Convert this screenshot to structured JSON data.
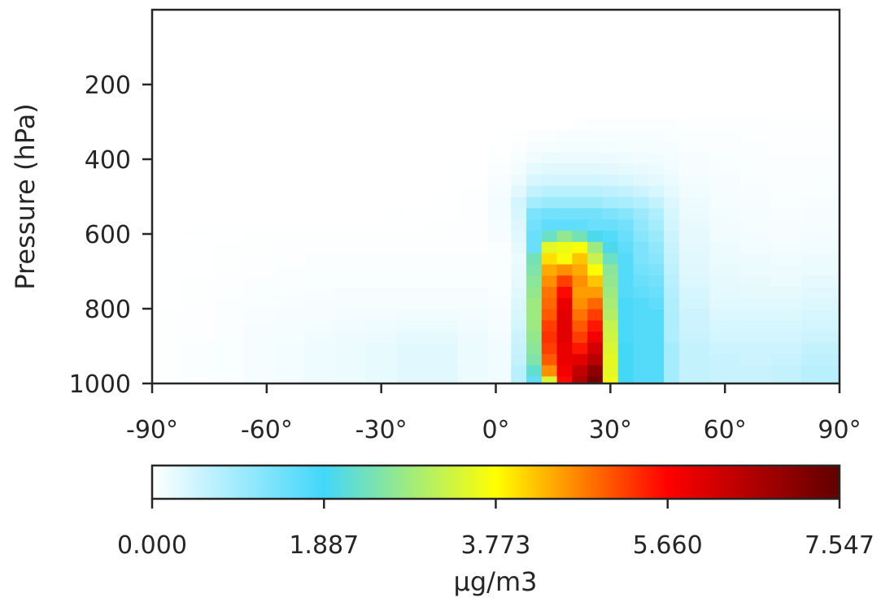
{
  "chart_data": {
    "type": "heatmap",
    "title": "",
    "xlabel": "",
    "ylabel": "Pressure (hPa)",
    "second_ylabel_partial": "Pressure (hPa)",
    "xlim": [
      -90,
      90
    ],
    "ylim": [
      1000,
      0
    ],
    "x_ticks": [
      -90,
      -60,
      -30,
      0,
      30,
      60,
      90
    ],
    "x_tick_labels": [
      "-90°",
      "-60°",
      "-30°",
      "0°",
      "30°",
      "60°",
      "90°"
    ],
    "y_ticks": [
      200,
      400,
      600,
      800,
      1000
    ],
    "y_tick_labels": [
      "200",
      "400",
      "600",
      "800",
      "1000"
    ],
    "grid": false,
    "colormap": "jet-like (white → cyan → yellow → red → dark red)",
    "colorbar": {
      "label": "μg/m3",
      "min": 0.0,
      "max": 7.547,
      "ticks": [
        0.0,
        1.887,
        3.773,
        5.66,
        7.547
      ],
      "tick_labels": [
        "0.000",
        "1.887",
        "3.773",
        "5.660",
        "7.547"
      ],
      "colors": [
        "#ffffff",
        "#42d7fa",
        "#ffff00",
        "#ff0000",
        "#600000"
      ],
      "stops": [
        0.0,
        0.25,
        0.5,
        0.75,
        1.0
      ]
    },
    "lat_edges": [
      -90,
      -82,
      -74,
      -66,
      -58,
      -50,
      -42,
      -34,
      -26,
      -18,
      -10,
      -2,
      4,
      8,
      12,
      16,
      20,
      24,
      28,
      32,
      36,
      40,
      44,
      48,
      56,
      64,
      72,
      80,
      90
    ],
    "pressure_edges": [
      1010,
      980,
      950,
      920,
      890,
      860,
      830,
      800,
      770,
      740,
      710,
      680,
      650,
      620,
      590,
      560,
      530,
      500,
      470,
      440,
      410,
      380,
      350,
      320,
      290
    ],
    "values": [
      [
        0.02,
        0.04,
        0.06,
        0.1,
        0.12,
        0.16,
        0.2,
        0.24,
        0.3,
        0.3,
        0.2,
        0.15,
        0.7,
        1.6,
        3.4,
        5.6,
        6.6,
        7.3,
        3.6,
        1.9,
        1.7,
        1.7,
        0.9,
        0.6,
        0.55,
        0.55,
        0.6,
        0.7
      ],
      [
        0.02,
        0.04,
        0.06,
        0.1,
        0.12,
        0.16,
        0.2,
        0.24,
        0.3,
        0.3,
        0.2,
        0.15,
        0.7,
        2.2,
        4.6,
        5.8,
        6.4,
        7.0,
        3.5,
        1.9,
        1.7,
        1.7,
        0.9,
        0.6,
        0.55,
        0.55,
        0.6,
        0.7
      ],
      [
        0.02,
        0.04,
        0.06,
        0.1,
        0.12,
        0.16,
        0.2,
        0.24,
        0.3,
        0.3,
        0.2,
        0.15,
        0.6,
        2.5,
        5.0,
        5.9,
        6.0,
        6.5,
        3.5,
        1.9,
        1.7,
        1.7,
        0.9,
        0.6,
        0.55,
        0.5,
        0.55,
        0.65
      ],
      [
        0.02,
        0.04,
        0.06,
        0.1,
        0.12,
        0.16,
        0.2,
        0.24,
        0.3,
        0.3,
        0.2,
        0.15,
        0.55,
        2.6,
        5.2,
        5.9,
        5.5,
        6.2,
        3.4,
        1.9,
        1.7,
        1.7,
        0.9,
        0.6,
        0.5,
        0.5,
        0.5,
        0.6
      ],
      [
        0.02,
        0.03,
        0.05,
        0.09,
        0.11,
        0.15,
        0.18,
        0.2,
        0.26,
        0.25,
        0.18,
        0.12,
        0.5,
        2.7,
        5.3,
        6.0,
        5.2,
        5.8,
        3.3,
        1.8,
        1.7,
        1.7,
        0.8,
        0.55,
        0.45,
        0.45,
        0.45,
        0.5
      ],
      [
        0.02,
        0.03,
        0.05,
        0.08,
        0.1,
        0.12,
        0.14,
        0.16,
        0.2,
        0.2,
        0.15,
        0.1,
        0.45,
        2.8,
        5.2,
        6.0,
        5.0,
        5.5,
        3.2,
        1.8,
        1.7,
        1.7,
        0.8,
        0.5,
        0.4,
        0.4,
        0.4,
        0.45
      ],
      [
        0.02,
        0.03,
        0.04,
        0.07,
        0.08,
        0.1,
        0.12,
        0.12,
        0.14,
        0.14,
        0.12,
        0.08,
        0.4,
        2.8,
        5.0,
        6.0,
        4.8,
        5.2,
        3.0,
        1.8,
        1.7,
        1.7,
        0.8,
        0.5,
        0.35,
        0.35,
        0.35,
        0.4
      ],
      [
        0.01,
        0.02,
        0.04,
        0.06,
        0.07,
        0.08,
        0.1,
        0.1,
        0.1,
        0.1,
        0.1,
        0.07,
        0.35,
        2.8,
        4.9,
        5.9,
        4.6,
        4.9,
        2.9,
        1.8,
        1.7,
        1.6,
        0.8,
        0.45,
        0.3,
        0.3,
        0.3,
        0.35
      ],
      [
        0.01,
        0.02,
        0.03,
        0.05,
        0.06,
        0.07,
        0.08,
        0.08,
        0.08,
        0.08,
        0.08,
        0.06,
        0.3,
        2.7,
        4.8,
        5.6,
        4.5,
        4.5,
        2.8,
        1.7,
        1.6,
        1.5,
        0.75,
        0.4,
        0.28,
        0.25,
        0.25,
        0.3
      ],
      [
        0.01,
        0.02,
        0.03,
        0.04,
        0.05,
        0.06,
        0.06,
        0.06,
        0.06,
        0.06,
        0.06,
        0.05,
        0.25,
        2.6,
        4.6,
        5.2,
        4.6,
        4.2,
        2.7,
        1.7,
        1.5,
        1.4,
        0.7,
        0.35,
        0.25,
        0.22,
        0.2,
        0.25
      ],
      [
        0.01,
        0.01,
        0.02,
        0.03,
        0.04,
        0.05,
        0.05,
        0.05,
        0.05,
        0.05,
        0.05,
        0.04,
        0.22,
        2.5,
        4.4,
        4.6,
        4.4,
        3.8,
        2.6,
        1.7,
        1.4,
        1.3,
        0.65,
        0.32,
        0.22,
        0.2,
        0.18,
        0.2
      ],
      [
        0.01,
        0.01,
        0.02,
        0.03,
        0.03,
        0.04,
        0.04,
        0.04,
        0.04,
        0.04,
        0.04,
        0.04,
        0.2,
        2.4,
        4.0,
        3.7,
        4.2,
        3.2,
        2.3,
        1.7,
        1.3,
        1.2,
        0.6,
        0.3,
        0.2,
        0.18,
        0.15,
        0.18
      ],
      [
        0.01,
        0.01,
        0.02,
        0.02,
        0.03,
        0.03,
        0.03,
        0.03,
        0.03,
        0.03,
        0.03,
        0.05,
        0.25,
        1.5,
        3.5,
        3.6,
        3.7,
        2.8,
        2.0,
        1.6,
        1.3,
        1.1,
        0.55,
        0.28,
        0.18,
        0.15,
        0.12,
        0.15
      ],
      [
        0.0,
        0.01,
        0.01,
        0.02,
        0.02,
        0.02,
        0.02,
        0.02,
        0.02,
        0.02,
        0.03,
        0.08,
        0.3,
        1.5,
        2.3,
        2.7,
        2.4,
        2.0,
        1.7,
        1.5,
        1.2,
        1.0,
        0.5,
        0.25,
        0.15,
        0.12,
        0.1,
        0.12
      ],
      [
        0.0,
        0.0,
        0.01,
        0.01,
        0.01,
        0.01,
        0.01,
        0.01,
        0.01,
        0.02,
        0.03,
        0.1,
        0.35,
        1.4,
        1.6,
        1.6,
        1.6,
        1.5,
        1.5,
        1.4,
        1.1,
        0.9,
        0.45,
        0.22,
        0.13,
        0.1,
        0.08,
        0.1
      ],
      [
        0.0,
        0.0,
        0.0,
        0.0,
        0.0,
        0.0,
        0.0,
        0.0,
        0.01,
        0.01,
        0.03,
        0.12,
        0.4,
        1.3,
        1.4,
        1.4,
        1.4,
        1.4,
        1.3,
        1.2,
        1.0,
        0.8,
        0.4,
        0.2,
        0.12,
        0.09,
        0.07,
        0.08
      ],
      [
        0.0,
        0.0,
        0.0,
        0.0,
        0.0,
        0.0,
        0.0,
        0.0,
        0.0,
        0.01,
        0.03,
        0.12,
        0.45,
        0.9,
        1.0,
        1.0,
        1.0,
        1.0,
        0.9,
        0.85,
        0.75,
        0.6,
        0.35,
        0.18,
        0.1,
        0.08,
        0.06,
        0.07
      ],
      [
        0.0,
        0.0,
        0.0,
        0.0,
        0.0,
        0.0,
        0.0,
        0.0,
        0.0,
        0.0,
        0.02,
        0.1,
        0.3,
        0.6,
        0.7,
        0.7,
        0.7,
        0.7,
        0.65,
        0.6,
        0.5,
        0.4,
        0.25,
        0.15,
        0.09,
        0.07,
        0.05,
        0.06
      ],
      [
        0.0,
        0.0,
        0.0,
        0.0,
        0.0,
        0.0,
        0.0,
        0.0,
        0.0,
        0.0,
        0.01,
        0.07,
        0.2,
        0.4,
        0.45,
        0.45,
        0.45,
        0.45,
        0.42,
        0.38,
        0.32,
        0.28,
        0.2,
        0.12,
        0.08,
        0.06,
        0.05,
        0.05
      ],
      [
        0.0,
        0.0,
        0.0,
        0.0,
        0.0,
        0.0,
        0.0,
        0.0,
        0.0,
        0.0,
        0.01,
        0.04,
        0.12,
        0.25,
        0.3,
        0.3,
        0.3,
        0.3,
        0.28,
        0.25,
        0.22,
        0.2,
        0.15,
        0.1,
        0.07,
        0.05,
        0.04,
        0.04
      ],
      [
        0.0,
        0.0,
        0.0,
        0.0,
        0.0,
        0.0,
        0.0,
        0.0,
        0.0,
        0.0,
        0.0,
        0.02,
        0.07,
        0.15,
        0.2,
        0.2,
        0.2,
        0.2,
        0.18,
        0.16,
        0.15,
        0.14,
        0.12,
        0.08,
        0.06,
        0.05,
        0.04,
        0.04
      ],
      [
        0.0,
        0.0,
        0.0,
        0.0,
        0.0,
        0.0,
        0.0,
        0.0,
        0.0,
        0.0,
        0.0,
        0.01,
        0.04,
        0.08,
        0.1,
        0.12,
        0.12,
        0.12,
        0.12,
        0.11,
        0.1,
        0.1,
        0.09,
        0.06,
        0.05,
        0.04,
        0.03,
        0.03
      ],
      [
        0.0,
        0.0,
        0.0,
        0.0,
        0.0,
        0.0,
        0.0,
        0.0,
        0.0,
        0.0,
        0.0,
        0.0,
        0.02,
        0.04,
        0.06,
        0.07,
        0.07,
        0.07,
        0.07,
        0.07,
        0.07,
        0.07,
        0.06,
        0.05,
        0.04,
        0.03,
        0.03,
        0.03
      ],
      [
        0.0,
        0.0,
        0.0,
        0.0,
        0.0,
        0.0,
        0.0,
        0.0,
        0.0,
        0.0,
        0.0,
        0.0,
        0.0,
        0.0,
        0.0,
        0.0,
        0.03,
        0.04,
        0.04,
        0.04,
        0.04,
        0.04,
        0.04,
        0.03,
        0.03,
        0.03,
        0.02,
        0.02
      ]
    ]
  }
}
